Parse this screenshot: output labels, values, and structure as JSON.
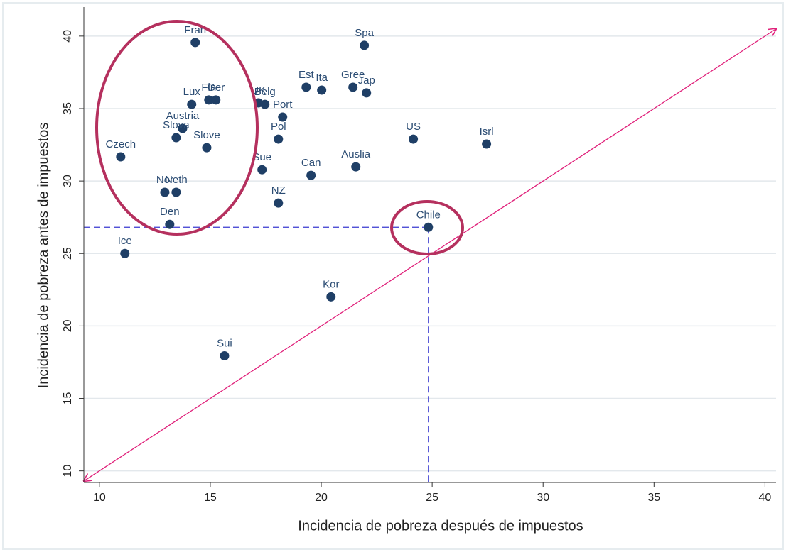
{
  "chart_data": {
    "type": "scatter",
    "xlabel": "Incidencia de pobreza después de impuestos",
    "ylabel": "Incidencia de pobreza antes de impuestos",
    "labels": [
      "Fran",
      "Spa",
      "Est",
      "Ita",
      "Gree",
      "Jap",
      "Lux",
      "Fin",
      "Ger",
      "UK",
      "Belg",
      "Port",
      "Austria",
      "Slova",
      "Slove",
      "Pol",
      "US",
      "Isrl",
      "Czech",
      "Sue",
      "Can",
      "Auslia",
      "Nor",
      "Neth",
      "NZ",
      "Den",
      "Chile",
      "Ice",
      "Kor",
      "Sui"
    ],
    "x": [
      14.32,
      21.94,
      19.32,
      20.02,
      21.43,
      22.04,
      14.16,
      14.93,
      15.25,
      17.17,
      17.46,
      18.26,
      13.75,
      13.46,
      14.84,
      18.07,
      24.15,
      27.45,
      10.96,
      17.33,
      19.54,
      21.56,
      12.95,
      13.46,
      18.07,
      13.17,
      24.83,
      11.15,
      20.44,
      15.64
    ],
    "values": [
      39.56,
      39.36,
      36.47,
      36.27,
      36.47,
      36.08,
      35.29,
      35.59,
      35.59,
      35.39,
      35.29,
      34.41,
      33.63,
      32.99,
      32.3,
      32.89,
      32.89,
      32.55,
      31.67,
      30.78,
      30.39,
      30.98,
      29.22,
      29.22,
      28.48,
      27.01,
      26.81,
      25.0,
      22.01,
      17.94
    ],
    "color": "#1f3f66",
    "xlim": [
      9.3,
      40.5
    ],
    "ylim": [
      9.2,
      42
    ],
    "xticks": [
      10,
      15,
      20,
      25,
      30,
      35,
      40
    ],
    "yticks": [
      10,
      15,
      20,
      25,
      30,
      35,
      40
    ],
    "grid": true
  }
}
